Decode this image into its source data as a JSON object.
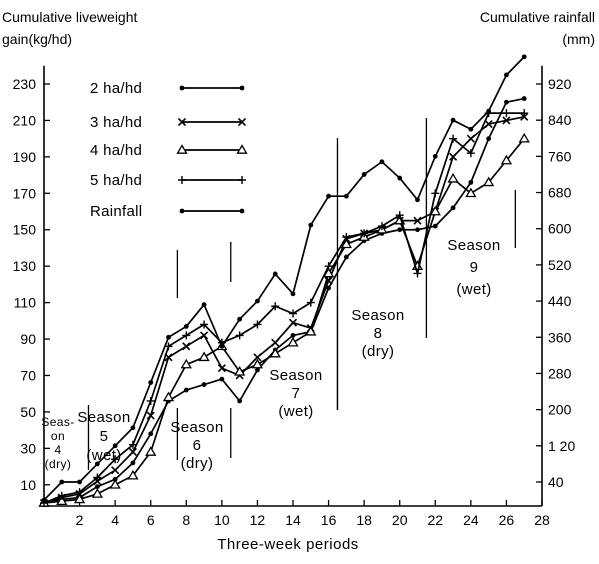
{
  "chart_data": {
    "type": "line",
    "left_axis_title": [
      "Cumulative liveweight",
      "gain(kg/hd)"
    ],
    "right_axis_title": [
      "Cumulative rainfall",
      "(mm)"
    ],
    "xlabel": "Three-week periods",
    "xlim": [
      0,
      28
    ],
    "ylim_left": [
      0,
      240
    ],
    "ylim_right": [
      0,
      960
    ],
    "x_ticks": [
      2,
      4,
      6,
      8,
      10,
      12,
      14,
      16,
      18,
      20,
      22,
      24,
      26,
      28
    ],
    "y_left_ticks": [
      10,
      30,
      50,
      70,
      90,
      110,
      130,
      150,
      170,
      190,
      210,
      230
    ],
    "y_right_ticks": [
      40,
      120,
      200,
      280,
      360,
      440,
      520,
      600,
      680,
      760,
      840,
      920
    ],
    "y_right_tick_labels": [
      "40",
      "1 20",
      "200",
      "280",
      "360",
      "440",
      "520",
      "600",
      "680",
      "760",
      "840",
      "920"
    ],
    "legend_position": "top-left",
    "series": [
      {
        "name": "2 ha/hd",
        "marker": "dot",
        "axis": "left",
        "x": [
          0,
          1,
          2,
          3,
          4,
          5,
          6,
          7,
          8,
          9,
          10,
          11,
          12,
          13,
          14,
          15,
          16,
          17,
          18,
          19,
          20,
          21,
          22,
          23,
          24,
          25,
          26,
          27
        ],
        "y": [
          0,
          2,
          3,
          9,
          13,
          22,
          38,
          56,
          62,
          65,
          68,
          56,
          73,
          84,
          92,
          94,
          118,
          135,
          144,
          148,
          150,
          150,
          152,
          162,
          176,
          200,
          220,
          222
        ]
      },
      {
        "name": "3 ha/hd",
        "marker": "x",
        "axis": "left",
        "x": [
          0,
          1,
          2,
          3,
          4,
          5,
          6,
          7,
          8,
          9,
          10,
          11,
          12,
          13,
          14,
          15,
          16,
          17,
          18,
          19,
          20,
          21,
          22,
          23,
          24,
          25,
          26,
          27
        ],
        "y": [
          0,
          3,
          5,
          12,
          18,
          28,
          48,
          80,
          86,
          92,
          74,
          70,
          80,
          88,
          99,
          96,
          122,
          145,
          148,
          150,
          155,
          155,
          160,
          190,
          200,
          208,
          210,
          212
        ]
      },
      {
        "name": "4 ha/hd",
        "marker": "triangle",
        "axis": "left",
        "x": [
          0,
          1,
          2,
          3,
          4,
          5,
          6,
          7,
          8,
          9,
          10,
          11,
          12,
          13,
          14,
          15,
          16,
          17,
          18,
          19,
          20,
          21,
          22,
          23,
          24,
          25,
          26,
          27
        ],
        "y": [
          0,
          1,
          2,
          5,
          10,
          15,
          28,
          58,
          76,
          80,
          86,
          72,
          76,
          82,
          88,
          94,
          126,
          142,
          146,
          150,
          155,
          130,
          160,
          178,
          170,
          176,
          188,
          200
        ]
      },
      {
        "name": "5 ha/hd",
        "marker": "plus",
        "axis": "left",
        "x": [
          0,
          1,
          2,
          3,
          4,
          5,
          6,
          7,
          8,
          9,
          10,
          11,
          12,
          13,
          14,
          15,
          16,
          17,
          18,
          19,
          20,
          21,
          22,
          23,
          24,
          25,
          26,
          27
        ],
        "y": [
          0,
          4,
          6,
          14,
          24,
          32,
          56,
          86,
          92,
          98,
          88,
          92,
          98,
          108,
          104,
          110,
          130,
          146,
          148,
          152,
          158,
          126,
          170,
          200,
          192,
          214,
          214,
          214
        ]
      },
      {
        "name": "Rainfall",
        "marker": "dot",
        "axis": "right",
        "x": [
          0,
          1,
          2,
          3,
          4,
          5,
          6,
          7,
          8,
          9,
          10,
          11,
          12,
          13,
          14,
          15,
          16,
          17,
          18,
          19,
          20,
          21,
          22,
          23,
          24,
          25,
          26,
          27
        ],
        "y": [
          0,
          40,
          40,
          80,
          120,
          160,
          260,
          360,
          384,
          432,
          340,
          400,
          440,
          500,
          456,
          608,
          672,
          672,
          720,
          748,
          712,
          664,
          760,
          840,
          820,
          860,
          940,
          980
        ]
      }
    ],
    "season_labels": [
      {
        "lines": [
          "Seas-",
          "on",
          "4",
          "(dry)"
        ]
      },
      {
        "lines": [
          "Season",
          "5",
          "(wet)"
        ]
      },
      {
        "lines": [
          "Season",
          "6",
          "(dry)"
        ]
      },
      {
        "lines": [
          "Season",
          "7",
          "(wet)"
        ]
      },
      {
        "lines": [
          "Season",
          "8",
          "(dry)"
        ]
      },
      {
        "lines": [
          "Season",
          "9",
          "(wet)"
        ]
      }
    ],
    "season_boundaries_x": [
      2.5,
      7.5,
      10.5,
      16.5,
      21.5,
      26.5
    ]
  }
}
